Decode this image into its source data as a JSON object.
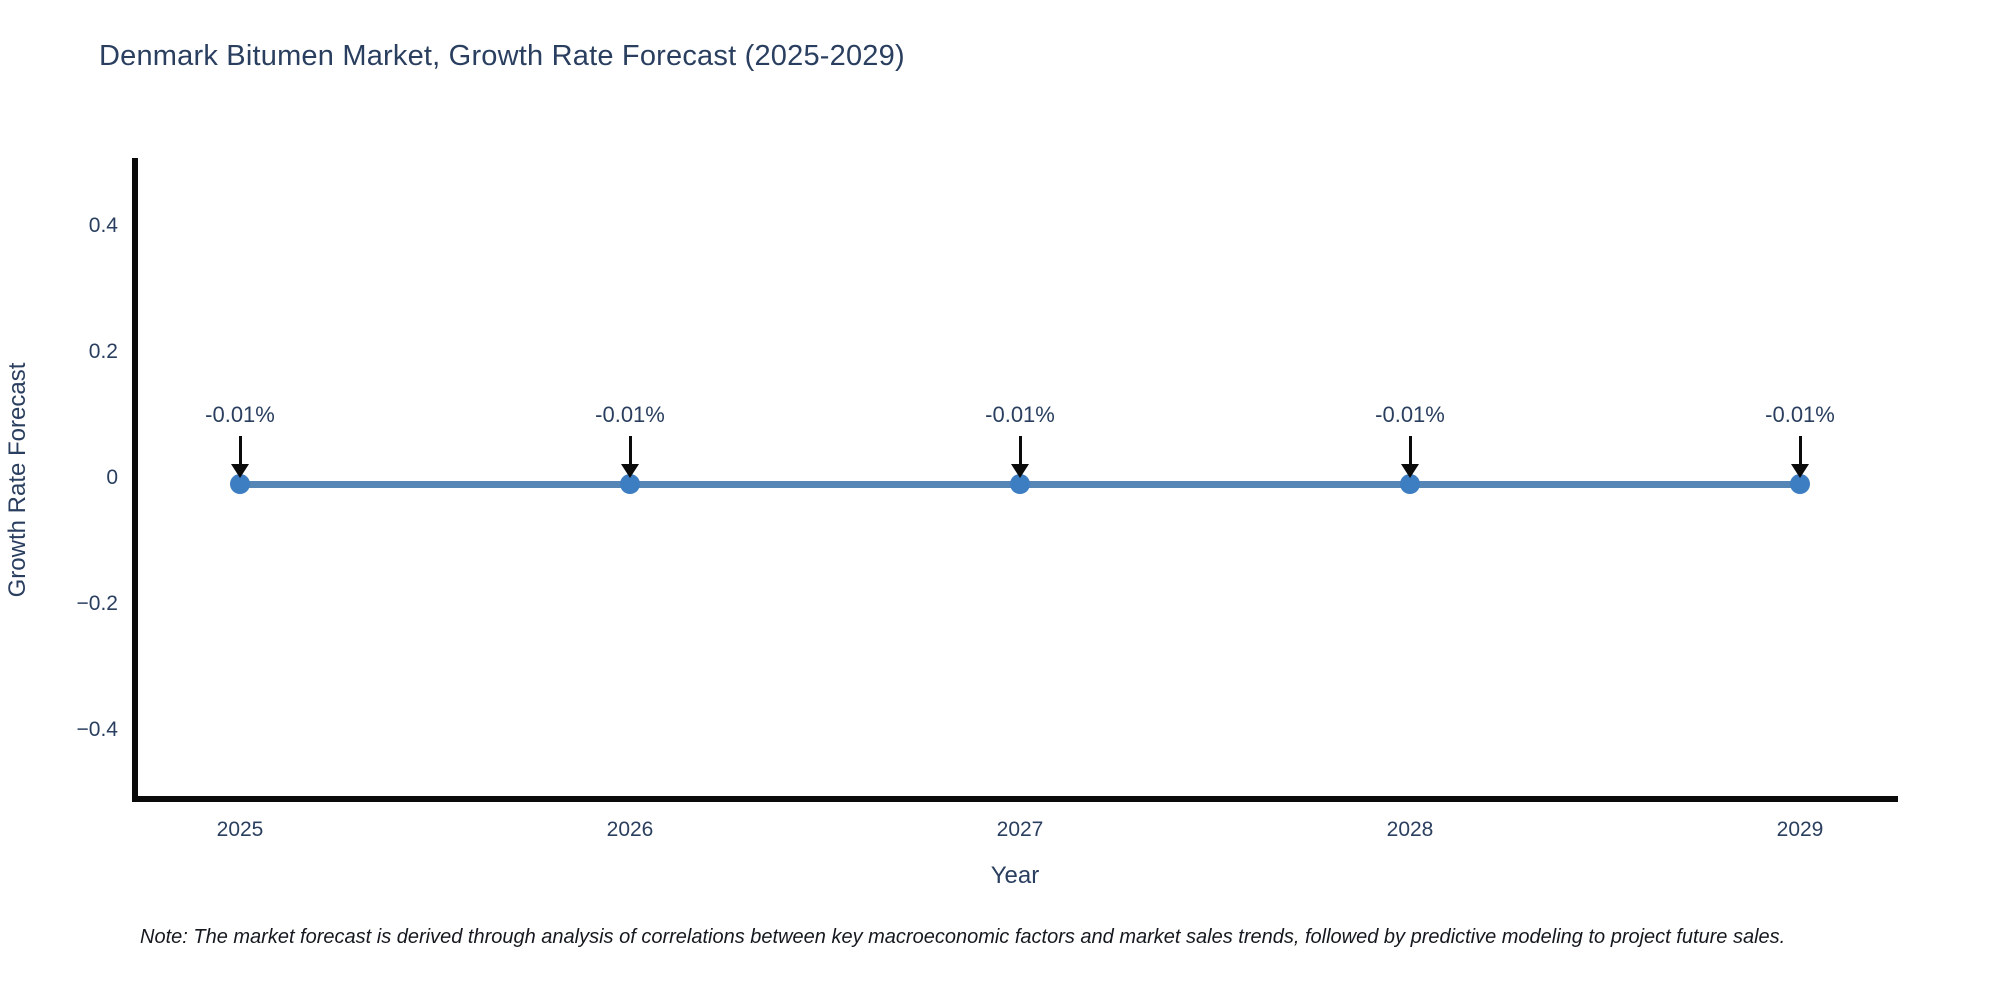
{
  "title": "Denmark Bitumen Market, Growth Rate Forecast (2025-2029)",
  "footnote": "Note: The market forecast is derived through analysis of correlations between key macroeconomic factors and market sales trends, followed by predictive modeling to project future sales.",
  "colors": {
    "line": "#5586b5",
    "marker": "#3d7ec2",
    "axis": "#0a0a0a",
    "text": "#2a3f5f",
    "arrow": "#0a0a0a",
    "background": "#ffffff"
  },
  "chart_data": {
    "type": "line",
    "title": "Denmark Bitumen Market, Growth Rate Forecast (2025-2029)",
    "xlabel": "Year",
    "ylabel": "Growth Rate Forecast",
    "x": [
      2025,
      2026,
      2027,
      2028,
      2029
    ],
    "xtick_labels": [
      "2025",
      "2026",
      "2027",
      "2028",
      "2029"
    ],
    "series": [
      {
        "name": "Growth Rate Forecast",
        "values": [
          -0.01,
          -0.01,
          -0.01,
          -0.01,
          -0.01
        ]
      }
    ],
    "annotations": [
      "-0.01%",
      "-0.01%",
      "-0.01%",
      "-0.01%",
      "-0.01%"
    ],
    "yticks": [
      0.4,
      0.2,
      0,
      -0.2,
      -0.4
    ],
    "ytick_labels": [
      "0.4",
      "0.2",
      "0",
      "−0.2",
      "−0.4"
    ],
    "ylim": [
      -0.51,
      0.51
    ],
    "grid": false,
    "legend": false,
    "marker": "circle"
  }
}
